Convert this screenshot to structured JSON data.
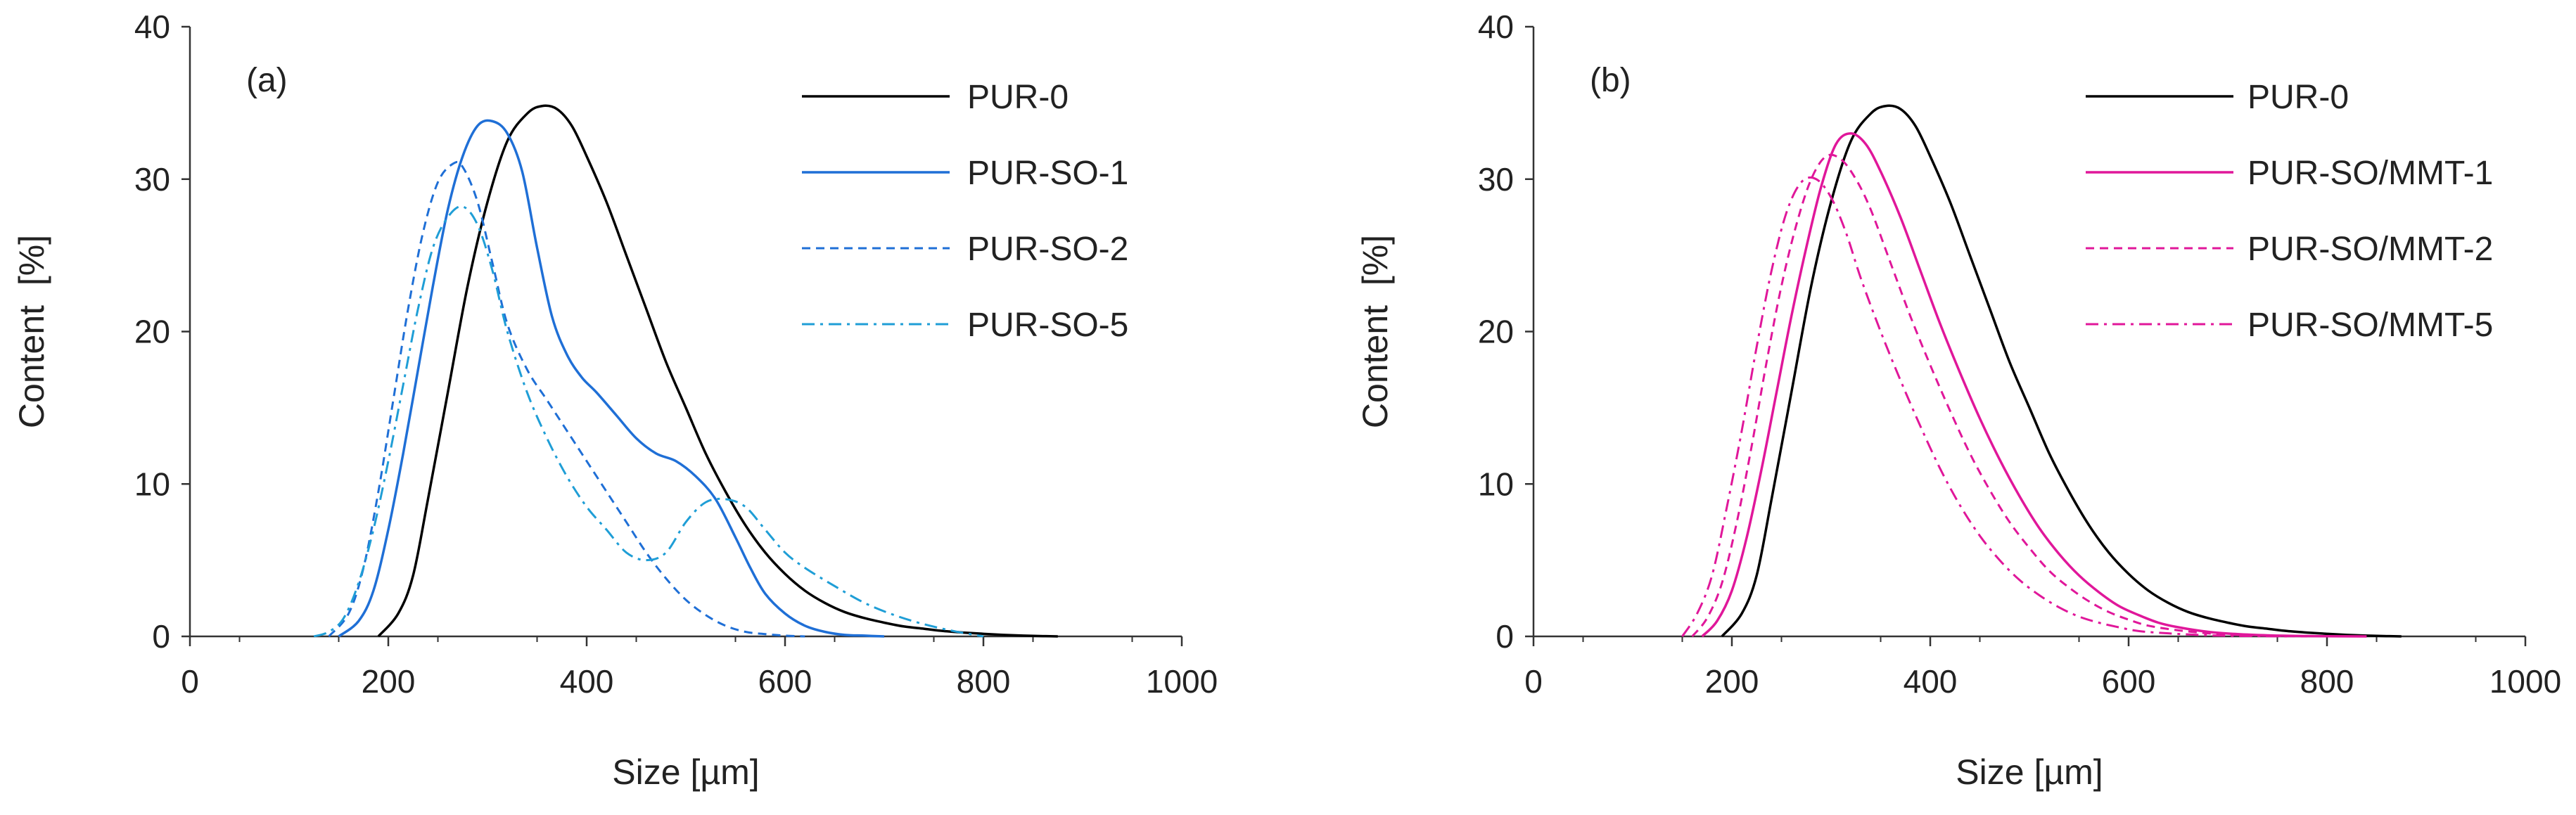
{
  "chart_data": [
    {
      "type": "line",
      "panel_label": "(a)",
      "xlabel": "Size [µm]",
      "ylabel": "Content  [%]",
      "xlim": [
        0,
        1000
      ],
      "ylim": [
        0,
        40
      ],
      "xticks": [
        "0",
        "200",
        "400",
        "600",
        "800",
        "1000"
      ],
      "yticks": [
        "0",
        "10",
        "20",
        "30",
        "40"
      ],
      "grid": false,
      "legend_position": "top-right",
      "series": [
        {
          "name": "PUR-0",
          "color": "#000000",
          "dash": "solid",
          "x": [
            190,
            210,
            225,
            240,
            260,
            280,
            300,
            320,
            340,
            355,
            370,
            385,
            400,
            420,
            440,
            460,
            480,
            500,
            520,
            540,
            560,
            580,
            600,
            620,
            640,
            660,
            680,
            700,
            720,
            740,
            760,
            780,
            800,
            820,
            840,
            860,
            875
          ],
          "y": [
            0,
            1.5,
            4,
            9,
            16,
            23,
            28.5,
            32.5,
            34.3,
            34.8,
            34.6,
            33.5,
            31.5,
            28.5,
            25,
            21.5,
            18,
            15,
            12,
            9.5,
            7.3,
            5.5,
            4.1,
            3.0,
            2.2,
            1.6,
            1.2,
            0.9,
            0.65,
            0.5,
            0.35,
            0.25,
            0.17,
            0.1,
            0.05,
            0.02,
            0
          ]
        },
        {
          "name": "PUR-SO-1",
          "color": "#1F6FD6",
          "dash": "solid",
          "x": [
            150,
            170,
            185,
            200,
            215,
            230,
            245,
            260,
            275,
            290,
            305,
            320,
            335,
            350,
            365,
            380,
            395,
            410,
            430,
            450,
            470,
            490,
            510,
            530,
            550,
            565,
            580,
            600,
            620,
            640,
            660,
            680,
            700
          ],
          "y": [
            0,
            1,
            3,
            7,
            12,
            17.5,
            23,
            28,
            31.5,
            33.5,
            33.8,
            33,
            30.5,
            25.5,
            21,
            18.5,
            17,
            16,
            14.5,
            13,
            12,
            11.5,
            10.5,
            9,
            6.5,
            4.5,
            2.8,
            1.5,
            0.7,
            0.3,
            0.1,
            0.05,
            0
          ]
        },
        {
          "name": "PUR-SO-2",
          "color": "#1F6FD6",
          "dash": "dash",
          "x": [
            140,
            160,
            175,
            190,
            205,
            220,
            235,
            250,
            265,
            275,
            290,
            305,
            320,
            340,
            360,
            380,
            400,
            420,
            440,
            460,
            480,
            500,
            520,
            540,
            560,
            580,
            600,
            620
          ],
          "y": [
            0,
            1.5,
            4.5,
            9.5,
            15.5,
            21.5,
            26.5,
            29.8,
            31,
            30.8,
            28.5,
            24.5,
            20.5,
            17.5,
            15.5,
            13.5,
            11.5,
            9.5,
            7.5,
            5.5,
            3.8,
            2.4,
            1.4,
            0.7,
            0.3,
            0.15,
            0.05,
            0
          ]
        },
        {
          "name": "PUR-SO-5",
          "color": "#1F9ED6",
          "dash": "dashdot",
          "x": [
            125,
            140,
            155,
            170,
            185,
            200,
            215,
            230,
            245,
            260,
            275,
            290,
            305,
            320,
            340,
            360,
            380,
            400,
            420,
            440,
            460,
            480,
            500,
            520,
            540,
            560,
            580,
            600,
            620,
            650,
            680,
            710,
            740,
            770,
            800
          ],
          "y": [
            0,
            0.3,
            1.2,
            3.5,
            7,
            11.5,
            16.5,
            21.5,
            25.5,
            27.5,
            28.2,
            27,
            24,
            20,
            16,
            13,
            10.5,
            8.5,
            7,
            5.5,
            5,
            5.5,
            7.5,
            8.8,
            9,
            8.5,
            7,
            5.5,
            4.5,
            3.3,
            2.2,
            1.4,
            0.8,
            0.35,
            0
          ]
        }
      ]
    },
    {
      "type": "line",
      "panel_label": "(b)",
      "xlabel": "Size [µm]",
      "ylabel": "Content  [%]",
      "xlim": [
        0,
        1000
      ],
      "ylim": [
        0,
        40
      ],
      "xticks": [
        "0",
        "200",
        "400",
        "600",
        "800",
        "1000"
      ],
      "yticks": [
        "0",
        "10",
        "20",
        "30",
        "40"
      ],
      "grid": false,
      "legend_position": "top-right",
      "series": [
        {
          "name": "PUR-0",
          "color": "#000000",
          "dash": "solid",
          "x": [
            190,
            210,
            225,
            240,
            260,
            280,
            300,
            320,
            340,
            355,
            370,
            385,
            400,
            420,
            440,
            460,
            480,
            500,
            520,
            540,
            560,
            580,
            600,
            620,
            640,
            660,
            680,
            700,
            720,
            740,
            760,
            780,
            800,
            820,
            840,
            860,
            875
          ],
          "y": [
            0,
            1.5,
            4,
            9,
            16,
            23,
            28.5,
            32.5,
            34.3,
            34.8,
            34.6,
            33.5,
            31.5,
            28.5,
            25,
            21.5,
            18,
            15,
            12,
            9.5,
            7.3,
            5.5,
            4.1,
            3.0,
            2.2,
            1.6,
            1.2,
            0.9,
            0.65,
            0.5,
            0.35,
            0.25,
            0.17,
            0.1,
            0.05,
            0.02,
            0
          ]
        },
        {
          "name": "PUR-SO/MMT-1",
          "color": "#E0179A",
          "dash": "solid",
          "x": [
            170,
            185,
            200,
            215,
            230,
            245,
            260,
            275,
            290,
            305,
            320,
            335,
            350,
            370,
            390,
            410,
            430,
            450,
            470,
            490,
            510,
            530,
            550,
            570,
            590,
            610,
            630,
            650,
            680,
            710,
            740,
            770,
            800,
            840
          ],
          "y": [
            0,
            1,
            3,
            6.5,
            11,
            16,
            21,
            25.5,
            29.5,
            32.3,
            33,
            32.3,
            30.5,
            27.5,
            24,
            20.5,
            17.3,
            14.3,
            11.6,
            9.2,
            7.1,
            5.4,
            4.0,
            2.9,
            2.0,
            1.4,
            0.9,
            0.6,
            0.3,
            0.15,
            0.07,
            0.03,
            0.01,
            0
          ]
        },
        {
          "name": "PUR-SO/MMT-2",
          "color": "#E0179A",
          "dash": "dash",
          "x": [
            160,
            175,
            190,
            205,
            220,
            235,
            250,
            265,
            280,
            295,
            310,
            325,
            340,
            360,
            380,
            400,
            420,
            440,
            460,
            480,
            500,
            520,
            540,
            560,
            580,
            600,
            620,
            650,
            680,
            710,
            740,
            780
          ],
          "y": [
            0,
            1.2,
            3.5,
            7.5,
            12.5,
            18,
            23,
            27,
            30,
            31.5,
            31.3,
            30,
            28,
            24.5,
            21,
            17.8,
            14.8,
            12,
            9.6,
            7.5,
            5.8,
            4.3,
            3.2,
            2.3,
            1.6,
            1.1,
            0.7,
            0.4,
            0.2,
            0.1,
            0.04,
            0
          ]
        },
        {
          "name": "PUR-SO/MMT-5",
          "color": "#E0179A",
          "dash": "dashdot",
          "x": [
            150,
            165,
            180,
            195,
            210,
            225,
            240,
            255,
            270,
            285,
            300,
            315,
            330,
            350,
            370,
            390,
            410,
            430,
            450,
            470,
            490,
            510,
            530,
            550,
            570,
            590,
            610,
            640,
            670,
            700,
            730,
            760
          ],
          "y": [
            0,
            1.5,
            4,
            8.5,
            13.5,
            19,
            24,
            27.8,
            29.8,
            30,
            28.8,
            26.5,
            23.5,
            20,
            16.8,
            13.8,
            11,
            8.6,
            6.6,
            5,
            3.7,
            2.7,
            1.9,
            1.3,
            0.9,
            0.6,
            0.35,
            0.2,
            0.1,
            0.04,
            0.02,
            0
          ]
        }
      ]
    }
  ]
}
